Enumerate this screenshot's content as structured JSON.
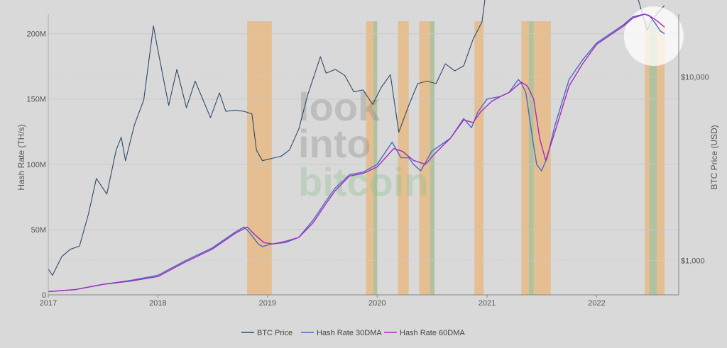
{
  "watermark": {
    "line1": "look",
    "line2": "into",
    "line3": "bitcoin"
  },
  "chart_data": {
    "type": "line",
    "ylabel_left": "Hash Rate (TH/s)",
    "ylabel_right": "BTC Price (USD)",
    "x_range": [
      "2017-01-01",
      "2022-10-01"
    ],
    "y_left_range": [
      0,
      215
    ],
    "y_left_unit": "M TH/s",
    "y_right_range_log": [
      650,
      22000
    ],
    "x_ticks": [
      "2017",
      "2018",
      "2019",
      "2020",
      "2021",
      "2022"
    ],
    "y_left_ticks": [
      "0",
      "50M",
      "100M",
      "150M",
      "200M"
    ],
    "y_right_ticks": [
      "$1,000",
      "$10,000"
    ],
    "grid": true,
    "legend_position": "bottom-center",
    "colors": {
      "btc_price": "#2e4a6b",
      "hash30": "#4a6cc4",
      "hash60": "#a62ac0",
      "band_orange": "#e8b478",
      "band_green": "#98c4a8",
      "highlight": "#ffffff"
    },
    "legend": [
      "BTC Price",
      "Hash Rate 30DMA",
      "Hash Rate 60DMA"
    ],
    "series": [
      {
        "name": "BTC Price",
        "axis": "right",
        "x": [
          "2017-01-01",
          "2017-01-15",
          "2017-02-15",
          "2017-03-15",
          "2017-04-15",
          "2017-05-15",
          "2017-06-10",
          "2017-07-15",
          "2017-08-15",
          "2017-09-01",
          "2017-09-15",
          "2017-10-15",
          "2017-11-15",
          "2017-12-17",
          "2018-01-01",
          "2018-02-06",
          "2018-03-05",
          "2018-04-06",
          "2018-05-05",
          "2018-06-25",
          "2018-07-25",
          "2018-08-15",
          "2018-09-15",
          "2018-10-15",
          "2018-11-10",
          "2018-11-25",
          "2018-12-15",
          "2019-01-15",
          "2019-02-15",
          "2019-03-15",
          "2019-04-15",
          "2019-05-15",
          "2019-06-26",
          "2019-07-15",
          "2019-08-15",
          "2019-09-15",
          "2019-10-15",
          "2019-11-15",
          "2019-12-17",
          "2020-01-15",
          "2020-02-14",
          "2020-03-13",
          "2020-04-15",
          "2020-05-15",
          "2020-06-15",
          "2020-07-15",
          "2020-08-15",
          "2020-09-15",
          "2020-10-15",
          "2020-11-15",
          "2020-12-15",
          "2021-01-08",
          "2021-01-25",
          "2021-02-20",
          "2021-03-13",
          "2021-04-14",
          "2021-05-01",
          "2021-05-19",
          "2021-06-22",
          "2021-07-20",
          "2021-08-15",
          "2021-09-07",
          "2021-09-21",
          "2021-10-20",
          "2021-11-10",
          "2021-12-15",
          "2022-01-24",
          "2022-02-15",
          "2022-03-29",
          "2022-04-15",
          "2022-05-12",
          "2022-06-18",
          "2022-07-01",
          "2022-07-20",
          "2022-08-14"
        ],
        "values": [
          900,
          830,
          1050,
          1150,
          1200,
          1800,
          2800,
          2300,
          4000,
          4700,
          3500,
          5500,
          7500,
          19000,
          14000,
          7000,
          11000,
          6800,
          9500,
          6000,
          8200,
          6500,
          6600,
          6500,
          6300,
          4000,
          3500,
          3600,
          3700,
          4000,
          5200,
          8000,
          12900,
          10500,
          11000,
          10200,
          8300,
          8500,
          7100,
          8800,
          10300,
          5000,
          7000,
          9200,
          9500,
          9200,
          11800,
          10800,
          11500,
          16000,
          20000,
          40000,
          32000,
          56000,
          61000,
          63500,
          57000,
          38000,
          32000,
          30000,
          47000,
          52000,
          42000,
          64000,
          68500,
          47000,
          36000,
          44000,
          47500,
          40000,
          29000,
          18000,
          20000,
          22000,
          24500
        ]
      },
      {
        "name": "Hash Rate 30DMA",
        "axis": "left",
        "x": [
          "2017-01-01",
          "2017-04-01",
          "2017-07-01",
          "2017-10-01",
          "2018-01-01",
          "2018-04-01",
          "2018-07-01",
          "2018-09-15",
          "2018-10-15",
          "2018-11-01",
          "2018-12-01",
          "2018-12-15",
          "2019-01-15",
          "2019-03-01",
          "2019-04-15",
          "2019-06-01",
          "2019-07-15",
          "2019-08-15",
          "2019-10-01",
          "2019-11-15",
          "2020-01-01",
          "2020-02-20",
          "2020-03-20",
          "2020-04-15",
          "2020-05-01",
          "2020-05-25",
          "2020-07-01",
          "2020-09-01",
          "2020-10-15",
          "2020-11-10",
          "2020-12-01",
          "2021-01-01",
          "2021-02-15",
          "2021-03-15",
          "2021-04-15",
          "2021-04-25",
          "2021-05-10",
          "2021-06-01",
          "2021-06-15",
          "2021-07-01",
          "2021-07-20",
          "2021-08-15",
          "2021-10-01",
          "2021-11-15",
          "2022-01-01",
          "2022-02-15",
          "2022-04-01",
          "2022-05-01",
          "2022-06-08",
          "2022-06-25",
          "2022-07-15",
          "2022-08-01",
          "2022-08-15"
        ],
        "values": [
          2.5,
          4,
          8,
          11,
          15,
          26,
          36,
          48,
          52,
          48,
          39,
          37,
          39,
          40,
          44,
          57,
          72,
          82,
          92,
          94,
          100,
          117,
          105,
          105,
          100,
          95,
          110,
          120,
          135,
          128,
          140,
          150,
          152,
          155,
          165,
          162,
          155,
          120,
          100,
          95,
          105,
          130,
          165,
          180,
          193,
          200,
          207,
          213,
          215,
          214,
          208,
          202,
          200
        ]
      },
      {
        "name": "Hash Rate 60DMA",
        "axis": "left",
        "x": [
          "2017-01-01",
          "2017-04-01",
          "2017-07-01",
          "2017-10-01",
          "2018-01-01",
          "2018-04-01",
          "2018-07-01",
          "2018-09-15",
          "2018-10-25",
          "2018-11-20",
          "2018-12-20",
          "2019-01-20",
          "2019-03-01",
          "2019-04-15",
          "2019-06-01",
          "2019-07-15",
          "2019-08-15",
          "2019-10-01",
          "2019-11-15",
          "2020-01-01",
          "2020-02-25",
          "2020-03-25",
          "2020-05-01",
          "2020-06-10",
          "2020-07-10",
          "2020-09-01",
          "2020-10-15",
          "2020-11-15",
          "2020-12-10",
          "2021-01-15",
          "2021-02-15",
          "2021-03-15",
          "2021-04-25",
          "2021-05-15",
          "2021-06-05",
          "2021-06-25",
          "2021-07-15",
          "2021-08-15",
          "2021-10-01",
          "2021-11-15",
          "2022-01-01",
          "2022-02-15",
          "2022-04-01",
          "2022-05-01",
          "2022-06-10",
          "2022-07-01",
          "2022-07-20",
          "2022-08-15"
        ],
        "values": [
          2.5,
          4,
          8,
          10.5,
          14,
          25,
          35,
          47,
          52,
          46,
          40,
          39,
          41,
          44,
          55,
          70,
          80,
          91,
          93,
          98,
          112,
          110,
          103,
          100,
          108,
          120,
          134,
          132,
          140,
          148,
          152,
          155,
          163,
          160,
          150,
          120,
          103,
          125,
          160,
          177,
          192,
          199,
          206,
          212,
          215,
          213,
          210,
          205
        ]
      }
    ],
    "bands": [
      {
        "start": "2018-10-25",
        "end": "2019-01-15",
        "kind": "orange"
      },
      {
        "start": "2019-11-25",
        "end": "2020-01-01",
        "kind": "orange"
      },
      {
        "start": "2019-12-20",
        "end": "2020-01-01",
        "kind": "green"
      },
      {
        "start": "2020-03-10",
        "end": "2020-04-15",
        "kind": "orange"
      },
      {
        "start": "2020-05-20",
        "end": "2020-07-10",
        "kind": "orange"
      },
      {
        "start": "2020-06-25",
        "end": "2020-07-10",
        "kind": "green"
      },
      {
        "start": "2020-11-20",
        "end": "2020-12-20",
        "kind": "orange"
      },
      {
        "start": "2021-04-25",
        "end": "2021-08-01",
        "kind": "orange"
      },
      {
        "start": "2021-05-20",
        "end": "2021-06-05",
        "kind": "green"
      },
      {
        "start": "2022-06-10",
        "end": "2022-08-15",
        "kind": "orange"
      },
      {
        "start": "2022-06-25",
        "end": "2022-07-20",
        "kind": "green"
      }
    ],
    "highlight": {
      "date": "2022-07-10",
      "hash": 196
    }
  }
}
